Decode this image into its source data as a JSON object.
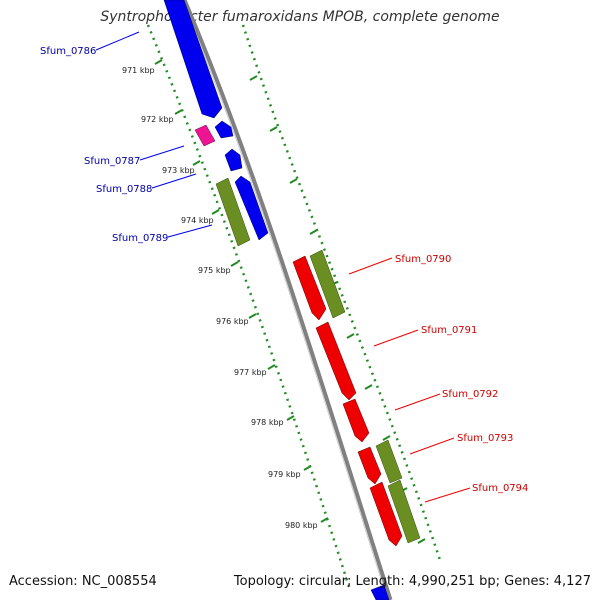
{
  "title": "Syntrophobacter fumaroxidans MPOB, complete genome",
  "footer": {
    "accession": "Accession: NC_008554",
    "topology": "Topology: circular; Length: 4,990,251 bp; Genes: 4,127"
  },
  "kbp_labels": [
    "971 kbp",
    "972 kbp",
    "973 kbp",
    "974 kbp",
    "975 kbp",
    "976 kbp",
    "977 kbp",
    "978 kbp",
    "979 kbp",
    "980 kbp"
  ],
  "genes_left": [
    "Sfum_0786",
    "Sfum_0787",
    "Sfum_0788",
    "Sfum_0789"
  ],
  "genes_right": [
    "Sfum_0790",
    "Sfum_0791",
    "Sfum_0792",
    "Sfum_0793",
    "Sfum_0794"
  ],
  "colors": {
    "backbone": "#808080",
    "forward_cds": "#0000ee",
    "reverse_cds": "#ee0000",
    "gene_track": "#6b8e23",
    "rna": "#ee1493",
    "ruler": "#228b22",
    "label_left": "#0000aa",
    "label_right": "#cc0000"
  }
}
